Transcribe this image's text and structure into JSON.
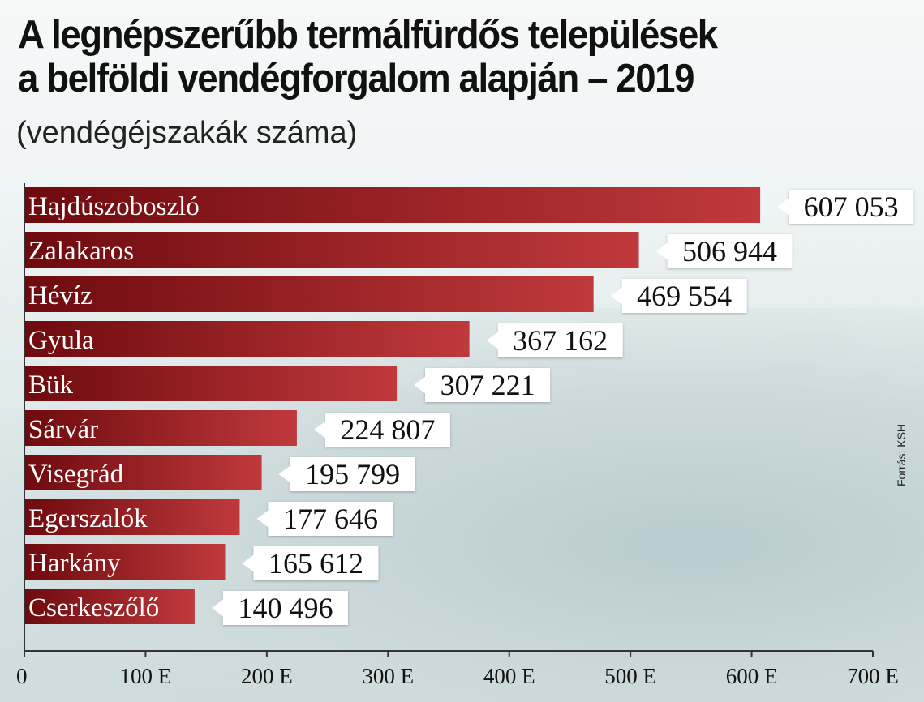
{
  "header": {
    "title_line1": "A legnépszerűbb termálfürdős települések",
    "title_line2": "a belföldi vendégforgalom alapján – 2019",
    "subtitle": "(vendégéjszakák száma)",
    "source": "Forrás: KSH"
  },
  "colors": {
    "bar_dark": "#6e0a0e",
    "bar_light": "#c0393c",
    "label_box": "#ffffff",
    "axis": "#333333"
  },
  "chart_data": {
    "type": "bar",
    "orientation": "horizontal",
    "title": "A legnépszerűbb termálfürdős települések a belföldi vendégforgalom alapján – 2019",
    "subtitle": "(vendégéjszakák száma)",
    "categories": [
      "Hajdúszoboszló",
      "Zalakaros",
      "Hévíz",
      "Gyula",
      "Bük",
      "Sárvár",
      "Visegrád",
      "Egerszalók",
      "Harkány",
      "Cserkeszőlő"
    ],
    "values": [
      607053,
      506944,
      469554,
      367162,
      307221,
      224807,
      195799,
      177646,
      165612,
      140496
    ],
    "value_labels": [
      "607 053",
      "506 944",
      "469 554",
      "367 162",
      "307 221",
      "224 807",
      "195 799",
      "177 646",
      "165 612",
      "140 496"
    ],
    "xlim": [
      0,
      700000
    ],
    "xticks": [
      0,
      100000,
      200000,
      300000,
      400000,
      500000,
      600000,
      700000
    ],
    "xtick_labels": [
      "0",
      "100 E",
      "200 E",
      "300 E",
      "400 E",
      "500 E",
      "600 E",
      "700 E"
    ],
    "grid": false,
    "legend": "none"
  }
}
